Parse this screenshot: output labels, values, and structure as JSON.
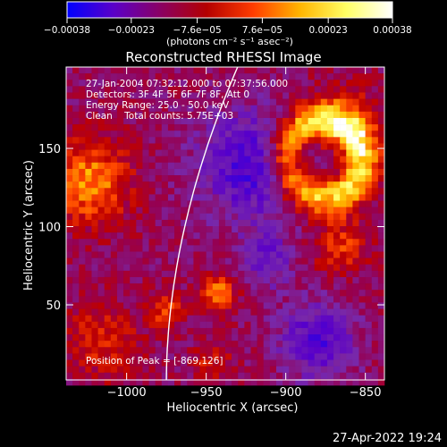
{
  "chart_data": {
    "type": "heatmap",
    "title": "Reconstructed RHESSI Image",
    "xlabel": "Heliocentric X (arcsec)",
    "ylabel": "Heliocentric Y (arcsec)",
    "xlim": [
      -1038,
      -838
    ],
    "ylim": [
      2,
      202
    ],
    "x_ticks": [
      -1000,
      -950,
      -900,
      -850
    ],
    "x_tick_labels": [
      "−1000",
      "−950",
      "−900",
      "−850"
    ],
    "y_ticks": [
      50,
      100,
      150
    ],
    "y_tick_labels": [
      "50",
      "100",
      "150"
    ],
    "colorbar": {
      "range": [
        -0.00038,
        0.00038
      ],
      "ticks": [
        -0.00038,
        -0.00023,
        -7.6e-05,
        7.6e-05,
        0.00023,
        0.00038
      ],
      "tick_labels": [
        "−0.00038",
        "−0.00023",
        "−7.6e−05",
        "7.6e−05",
        "0.00023",
        "0.00038"
      ],
      "unit_label": "(photons cm⁻² s⁻¹ asec⁻²)",
      "colors": [
        "#0000ff",
        "#5a00c8",
        "#8a0064",
        "#b40000",
        "#ff3c00",
        "#ffb400",
        "#ffff64",
        "#ffffff"
      ]
    },
    "annotations": {
      "time_range": "27-Jan-2004 07:32:12.000 to 07:37:56.000",
      "detectors": "Detectors: 3F 4F 5F 6F 7F 8F, Att 0",
      "energy_range": "Energy Range: 25.0 - 50.0 keV",
      "method": "Clean    Total counts: 5.75E+03",
      "peak": "Position of Peak = [-869,126]"
    },
    "limb": true,
    "grid": false
  },
  "footer": {
    "timestamp": "27-Apr-2022 19:24"
  }
}
